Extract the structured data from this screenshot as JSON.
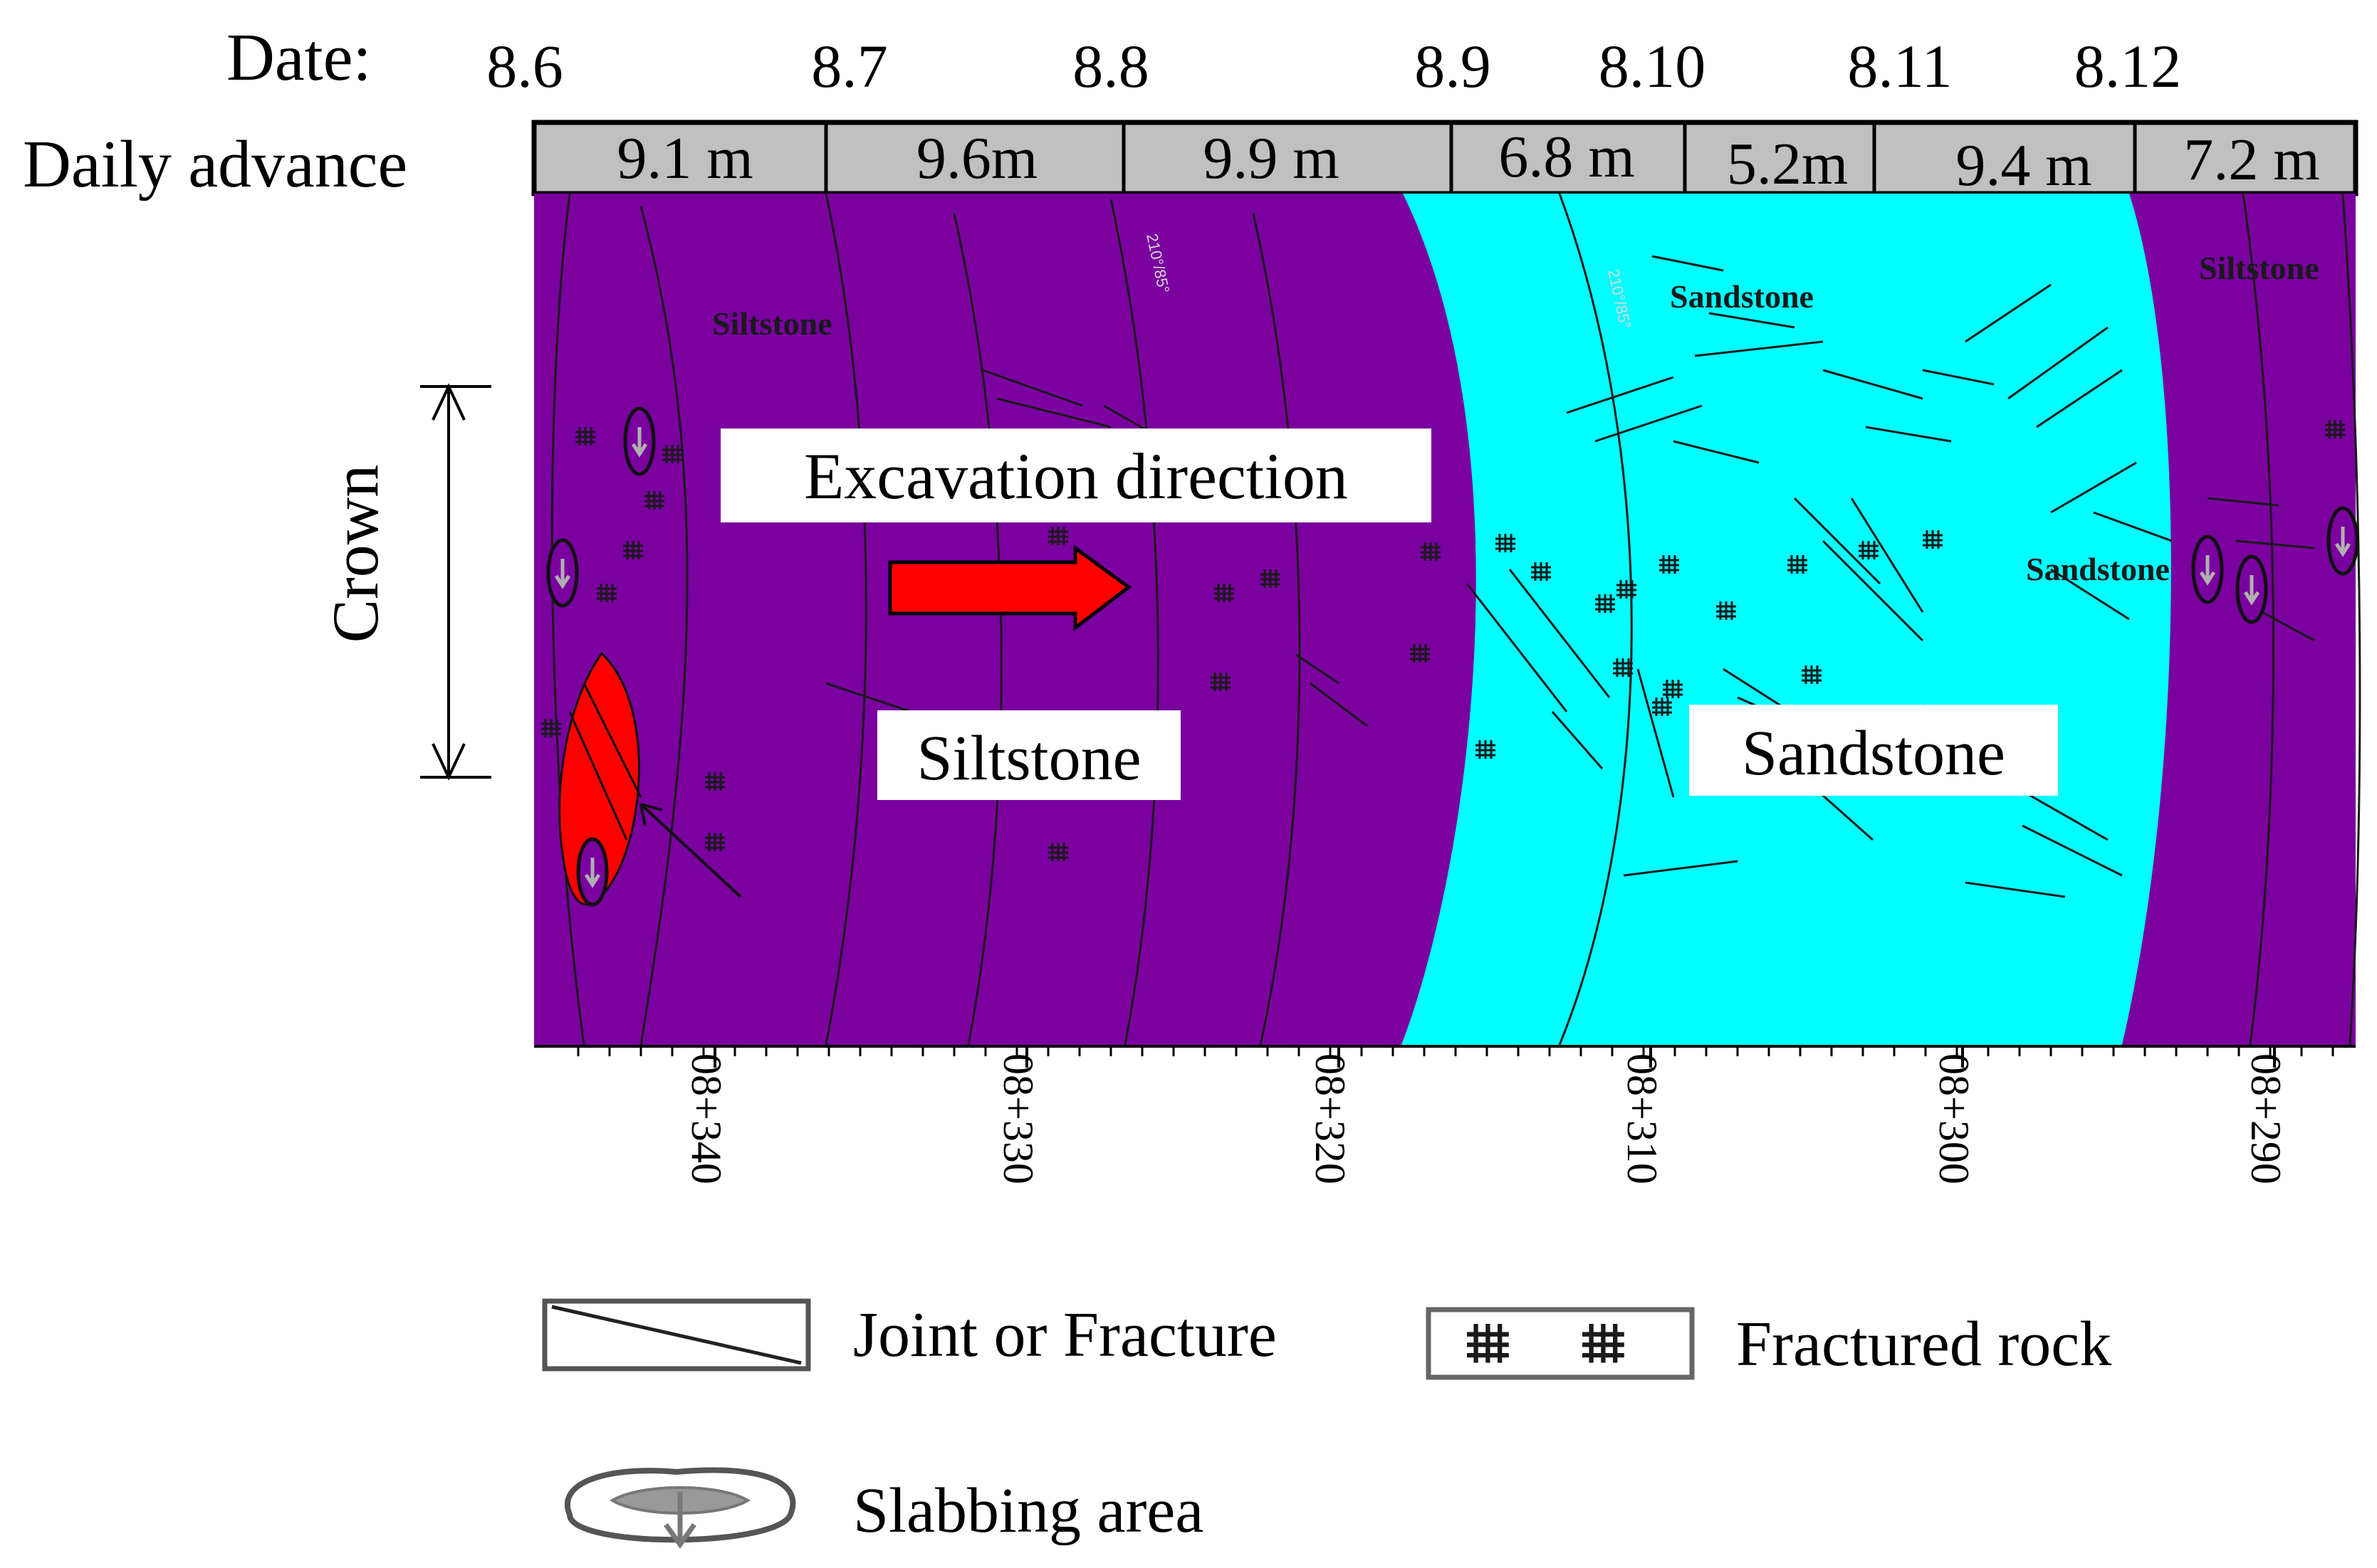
{
  "header": {
    "date_label": "Date:",
    "advance_label": "Daily advance",
    "dates": [
      "8.6",
      "8.7",
      "8.8",
      "8.9",
      "8.10",
      "8.11",
      "8.12"
    ],
    "advances": [
      "9.1 m",
      "9.6m",
      "9.9 m",
      "6.8 m",
      "5.2m",
      "9.4 m",
      "7.2 m"
    ]
  },
  "map": {
    "crown_label": "Crown",
    "direction_label": "Excavation direction",
    "zones": {
      "siltstone_label": "Siltstone",
      "sandstone_label": "Sandstone"
    },
    "small_labels": {
      "siltstone_left": "Siltstone",
      "sandstone_top": "Sandstone",
      "siltstone_right": "Siltstone",
      "sandstone_right": "Sandstone",
      "orientation_1": "210°/85°",
      "orientation_2": "210°/85°"
    },
    "chainages": [
      "08+340",
      "08+330",
      "08+320",
      "08+310",
      "08+300",
      "08+290"
    ],
    "colors": {
      "siltstone": "#7a00a0",
      "sandstone": "#00ffff",
      "slabbing_fill": "#ff0000",
      "arrow_fill": "#ff0000",
      "header_fill": "#c0c0c0"
    }
  },
  "legend": {
    "joint_label": "Joint or Fracture",
    "fractured_label": "Fractured rock",
    "slabbing_label": "Slabbing area"
  }
}
